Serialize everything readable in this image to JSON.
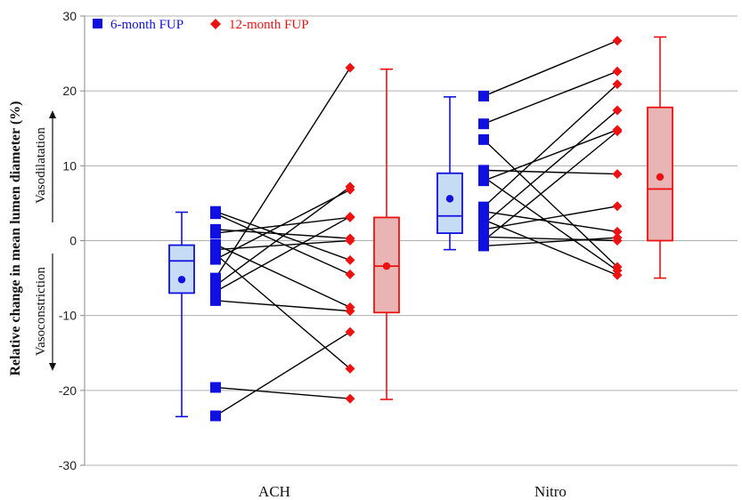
{
  "chart_data": {
    "type": "box-scatter",
    "ylabel": "Relative change in mean lumen diameter (%)",
    "ylim": [
      -30,
      30
    ],
    "yticks": [
      -30,
      -20,
      -10,
      0,
      10,
      20,
      30
    ],
    "grid": true,
    "categories": [
      "ACH",
      "Nitro"
    ],
    "legend_placement": "top-left",
    "legend": [
      {
        "label": "6-month FUP",
        "color": "#1010e0",
        "marker": "square"
      },
      {
        "label": "12-month FUP",
        "color": "#ee1111",
        "marker": "diamond"
      }
    ],
    "annotations": {
      "up": "Vasodilatation",
      "down": "Vasoconstriction"
    },
    "colors": {
      "six_month": "#1010e0",
      "twelve_month": "#ee1111",
      "six_month_fill": "#c6dcf5",
      "twelve_month_fill": "#e8b4b4",
      "line": "#000000",
      "grid": "#b0b0b0"
    },
    "groups": [
      {
        "category": "ACH",
        "box_6": {
          "min": -23.5,
          "q1": -7.0,
          "median": -2.7,
          "q3": -0.6,
          "max": 3.8,
          "mean": -5.2
        },
        "box_12": {
          "min": -21.2,
          "q1": -9.6,
          "median": -3.4,
          "q3": 3.1,
          "max": 22.9,
          "mean": -3.4
        },
        "pairs": [
          [
            3.9,
            -2.6
          ],
          [
            3.6,
            -4.5
          ],
          [
            1.5,
            0.3
          ],
          [
            1.0,
            3.1
          ],
          [
            -0.5,
            -8.9
          ],
          [
            -1.2,
            0.0
          ],
          [
            -1.8,
            -17.1
          ],
          [
            -2.5,
            6.8
          ],
          [
            -5.0,
            23.1
          ],
          [
            -6.0,
            7.2
          ],
          [
            -6.8,
            3.2
          ],
          [
            -8.0,
            -9.4
          ],
          [
            -19.6,
            -21.1
          ],
          [
            -23.4,
            -12.2
          ]
        ]
      },
      {
        "category": "Nitro",
        "box_6": {
          "min": -1.2,
          "q1": 1.0,
          "median": 3.3,
          "q3": 9.0,
          "max": 19.2,
          "mean": 5.6
        },
        "box_12": {
          "min": -5.0,
          "q1": 0.0,
          "median": 6.9,
          "q3": 17.8,
          "max": 27.2,
          "mean": 8.5
        },
        "pairs": [
          [
            19.3,
            26.7
          ],
          [
            15.6,
            22.6
          ],
          [
            13.5,
            -3.5
          ],
          [
            9.4,
            8.9
          ],
          [
            8.5,
            -4.0
          ],
          [
            8.0,
            14.8
          ],
          [
            4.5,
            20.9
          ],
          [
            3.9,
            1.2
          ],
          [
            2.8,
            -4.6
          ],
          [
            2.2,
            17.4
          ],
          [
            1.5,
            4.6
          ],
          [
            0.5,
            0.0
          ],
          [
            0.0,
            14.6
          ],
          [
            -0.7,
            0.4
          ]
        ]
      }
    ]
  }
}
